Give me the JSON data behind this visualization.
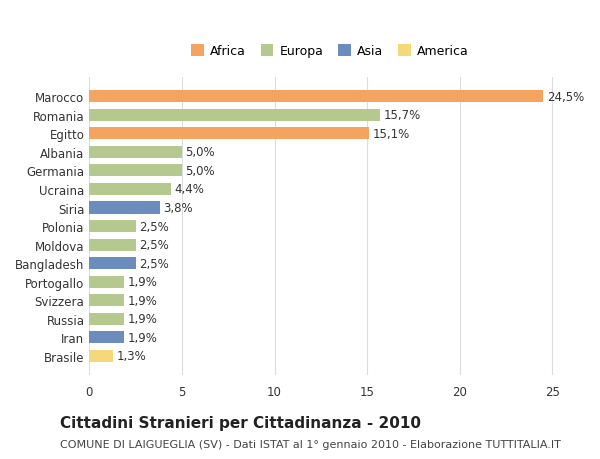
{
  "categories": [
    "Brasile",
    "Iran",
    "Russia",
    "Svizzera",
    "Portogallo",
    "Bangladesh",
    "Moldova",
    "Polonia",
    "Siria",
    "Ucraina",
    "Germania",
    "Albania",
    "Egitto",
    "Romania",
    "Marocco"
  ],
  "values": [
    1.3,
    1.9,
    1.9,
    1.9,
    1.9,
    2.5,
    2.5,
    2.5,
    3.8,
    4.4,
    5.0,
    5.0,
    15.1,
    15.7,
    24.5
  ],
  "continents": [
    "America",
    "Asia",
    "Europa",
    "Europa",
    "Europa",
    "Asia",
    "Europa",
    "Europa",
    "Asia",
    "Europa",
    "Europa",
    "Europa",
    "Africa",
    "Europa",
    "Africa"
  ],
  "colors": {
    "Africa": "#F4A460",
    "Europa": "#B5C98E",
    "Asia": "#6B8DBE",
    "America": "#F5D87A"
  },
  "legend_items": [
    "Africa",
    "Europa",
    "Asia",
    "America"
  ],
  "legend_colors": {
    "Africa": "#F4A460",
    "Europa": "#B5C98E",
    "Asia": "#6B8DBE",
    "America": "#F5D87A"
  },
  "title": "Cittadini Stranieri per Cittadinanza - 2010",
  "subtitle": "COMUNE DI LAIGUEGLIA (SV) - Dati ISTAT al 1° gennaio 2010 - Elaborazione TUTTITALIA.IT",
  "xlim": [
    0,
    26
  ],
  "xticks": [
    0,
    5,
    10,
    15,
    20,
    25
  ],
  "bar_height": 0.65,
  "background_color": "#ffffff",
  "grid_color": "#dddddd",
  "label_fontsize": 8.5,
  "tick_fontsize": 8.5,
  "title_fontsize": 11,
  "subtitle_fontsize": 8
}
